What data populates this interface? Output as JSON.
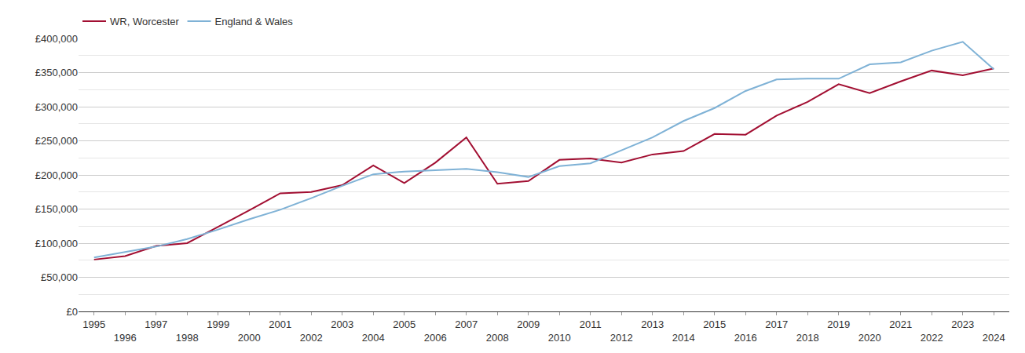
{
  "chart_data": {
    "type": "line",
    "x": [
      1995,
      1996,
      1997,
      1998,
      1999,
      2000,
      2001,
      2002,
      2003,
      2004,
      2005,
      2006,
      2007,
      2008,
      2009,
      2010,
      2011,
      2012,
      2013,
      2014,
      2015,
      2016,
      2017,
      2018,
      2019,
      2020,
      2021,
      2022,
      2023,
      2024
    ],
    "series": [
      {
        "name": "WR, Worcester",
        "color": "#a20f32",
        "values": [
          76000,
          81000,
          96000,
          100000,
          124000,
          148000,
          173000,
          175000,
          185000,
          214000,
          188000,
          218000,
          255000,
          187000,
          191000,
          222000,
          224000,
          218000,
          230000,
          235000,
          260000,
          259000,
          287000,
          307000,
          333000,
          320000,
          337000,
          353000,
          346000,
          356000
        ]
      },
      {
        "name": "England & Wales",
        "color": "#7fb2d6",
        "values": [
          79000,
          87000,
          95000,
          106000,
          120000,
          135000,
          149000,
          166000,
          184000,
          201000,
          205000,
          207000,
          209000,
          204000,
          197000,
          213000,
          217000,
          236000,
          255000,
          279000,
          298000,
          323000,
          340000,
          341000,
          341000,
          362000,
          365000,
          382000,
          395000,
          355000
        ]
      }
    ],
    "xlim": [
      1994.5,
      2024.5
    ],
    "xticks": [
      1995,
      1996,
      1997,
      1998,
      1999,
      2000,
      2001,
      2002,
      2003,
      2004,
      2005,
      2006,
      2007,
      2008,
      2009,
      2010,
      2011,
      2012,
      2013,
      2014,
      2015,
      2016,
      2017,
      2018,
      2019,
      2020,
      2021,
      2022,
      2023,
      2024
    ],
    "ylim": [
      0,
      400000
    ],
    "yticks": [
      {
        "value": 0,
        "label": "£0"
      },
      {
        "value": 50000,
        "label": "£50,000"
      },
      {
        "value": 100000,
        "label": "£100,000"
      },
      {
        "value": 150000,
        "label": "£150,000"
      },
      {
        "value": 200000,
        "label": "£200,000"
      },
      {
        "value": 250000,
        "label": "£250,000"
      },
      {
        "value": 300000,
        "label": "£300,000"
      },
      {
        "value": 350000,
        "label": "£350,000"
      },
      {
        "value": 400000,
        "label": "£400,000"
      }
    ],
    "grid": true,
    "legend": "top left"
  }
}
